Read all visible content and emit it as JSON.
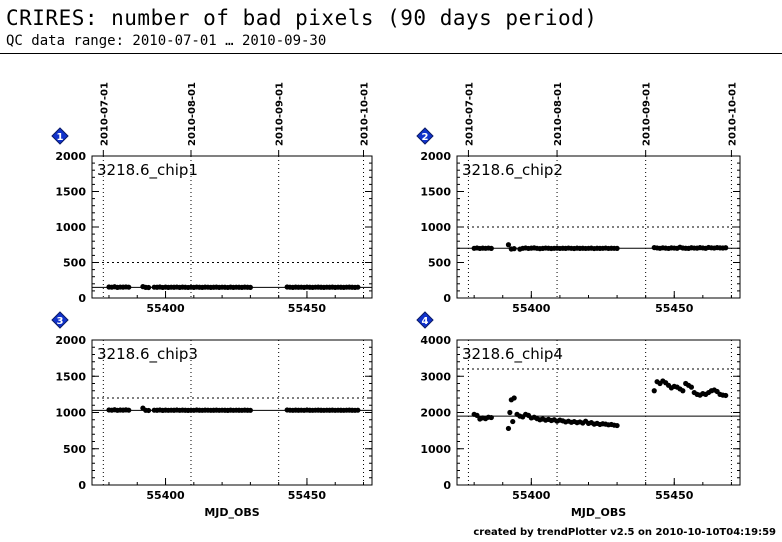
{
  "header": {
    "title": "CRIRES: number of bad pixels (90 days period)",
    "subtitle": "QC data range: 2010-07-01 … 2010-09-30"
  },
  "footer": "created by trendPlotter v2.5 on 2010-10-10T04:19:59",
  "date_ticks": [
    {
      "label": "2010-07-01",
      "mjd": 55378
    },
    {
      "label": "2010-08-01",
      "mjd": 55409
    },
    {
      "label": "2010-09-01",
      "mjd": 55440
    },
    {
      "label": "2010-10-01",
      "mjd": 55470
    }
  ],
  "colors": {
    "badge": "#1133cc",
    "points": "#000000"
  },
  "chart_data": [
    {
      "type": "scatter",
      "badge": "1",
      "name": "3218.6_chip1",
      "xlabel": "",
      "xlim": [
        55374,
        55473
      ],
      "ylim": [
        0,
        2000
      ],
      "yticks": [
        0,
        500,
        1000,
        1500,
        2000
      ],
      "xticks": [
        55400,
        55450
      ],
      "reference": 150,
      "threshold": 500,
      "x": [
        55380,
        55381,
        55382,
        55383,
        55384,
        55385,
        55386,
        55387,
        55392,
        55393,
        55394,
        55396,
        55397,
        55398,
        55399,
        55400,
        55401,
        55402,
        55403,
        55404,
        55405,
        55406,
        55407,
        55408,
        55409,
        55410,
        55411,
        55412,
        55413,
        55414,
        55415,
        55416,
        55417,
        55418,
        55419,
        55420,
        55421,
        55422,
        55423,
        55424,
        55425,
        55426,
        55427,
        55428,
        55429,
        55430,
        55443,
        55444,
        55445,
        55446,
        55447,
        55448,
        55449,
        55450,
        55451,
        55452,
        55453,
        55454,
        55455,
        55456,
        55457,
        55458,
        55459,
        55460,
        55461,
        55462,
        55463,
        55464,
        55465,
        55466,
        55467,
        55468
      ],
      "y": [
        155,
        152,
        158,
        150,
        154,
        153,
        156,
        152,
        160,
        150,
        148,
        152,
        151,
        155,
        149,
        153,
        150,
        152,
        151,
        154,
        150,
        153,
        151,
        149,
        152,
        150,
        154,
        151,
        150,
        153,
        152,
        150,
        151,
        153,
        150,
        152,
        151,
        149,
        153,
        150,
        152,
        151,
        150,
        153,
        151,
        150,
        155,
        152,
        150,
        153,
        151,
        152,
        150,
        154,
        151,
        150,
        152,
        153,
        151,
        150,
        152,
        151,
        153,
        150,
        152,
        151,
        150,
        152,
        153,
        151,
        150,
        152
      ]
    },
    {
      "type": "scatter",
      "badge": "2",
      "name": "3218.6_chip2",
      "xlabel": "",
      "xlim": [
        55374,
        55473
      ],
      "ylim": [
        0,
        2000
      ],
      "yticks": [
        0,
        500,
        1000,
        1500,
        2000
      ],
      "xticks": [
        55400,
        55450
      ],
      "reference": 700,
      "threshold": 1000,
      "x": [
        55380,
        55381,
        55382,
        55383,
        55384,
        55385,
        55386,
        55392,
        55393,
        55394,
        55396,
        55397,
        55398,
        55399,
        55400,
        55401,
        55402,
        55403,
        55404,
        55405,
        55406,
        55407,
        55408,
        55409,
        55410,
        55411,
        55412,
        55413,
        55414,
        55415,
        55416,
        55417,
        55418,
        55419,
        55420,
        55421,
        55422,
        55423,
        55424,
        55425,
        55426,
        55427,
        55428,
        55429,
        55430,
        55443,
        55444,
        55445,
        55446,
        55447,
        55448,
        55449,
        55450,
        55451,
        55452,
        55453,
        55454,
        55455,
        55456,
        55457,
        55458,
        55459,
        55460,
        55461,
        55462,
        55463,
        55464,
        55465,
        55466,
        55467,
        55468
      ],
      "y": [
        700,
        705,
        698,
        702,
        700,
        703,
        699,
        750,
        690,
        695,
        688,
        700,
        705,
        698,
        702,
        706,
        700,
        695,
        699,
        703,
        701,
        697,
        700,
        702,
        698,
        701,
        699,
        703,
        700,
        697,
        702,
        699,
        701,
        698,
        700,
        702,
        696,
        701,
        699,
        700,
        703,
        698,
        701,
        700,
        699,
        710,
        705,
        700,
        707,
        702,
        698,
        706,
        703,
        700,
        715,
        704,
        701,
        699,
        708,
        703,
        702,
        709,
        705,
        700,
        712,
        707,
        703,
        710,
        706,
        704,
        708
      ]
    },
    {
      "type": "scatter",
      "badge": "3",
      "name": "3218.6_chip3",
      "xlabel": "MJD_OBS",
      "xlim": [
        55374,
        55473
      ],
      "ylim": [
        0,
        2000
      ],
      "yticks": [
        0,
        500,
        1000,
        1500,
        2000
      ],
      "xticks": [
        55400,
        55450
      ],
      "reference": 1030,
      "threshold": 1200,
      "x": [
        55380,
        55381,
        55382,
        55383,
        55384,
        55385,
        55386,
        55387,
        55392,
        55393,
        55394,
        55396,
        55397,
        55398,
        55399,
        55400,
        55401,
        55402,
        55403,
        55404,
        55405,
        55406,
        55407,
        55408,
        55409,
        55410,
        55411,
        55412,
        55413,
        55414,
        55415,
        55416,
        55417,
        55418,
        55419,
        55420,
        55421,
        55422,
        55423,
        55424,
        55425,
        55426,
        55427,
        55428,
        55429,
        55430,
        55443,
        55444,
        55445,
        55446,
        55447,
        55448,
        55449,
        55450,
        55451,
        55452,
        55453,
        55454,
        55455,
        55456,
        55457,
        55458,
        55459,
        55460,
        55461,
        55462,
        55463,
        55464,
        55465,
        55466,
        55467,
        55468
      ],
      "y": [
        1035,
        1032,
        1038,
        1030,
        1034,
        1033,
        1036,
        1032,
        1060,
        1030,
        1028,
        1032,
        1031,
        1035,
        1029,
        1033,
        1030,
        1032,
        1031,
        1034,
        1030,
        1033,
        1031,
        1029,
        1032,
        1030,
        1034,
        1031,
        1030,
        1033,
        1032,
        1030,
        1031,
        1033,
        1030,
        1032,
        1031,
        1029,
        1033,
        1030,
        1032,
        1031,
        1030,
        1033,
        1031,
        1030,
        1035,
        1032,
        1030,
        1033,
        1031,
        1032,
        1030,
        1034,
        1031,
        1030,
        1032,
        1033,
        1031,
        1030,
        1032,
        1031,
        1033,
        1030,
        1032,
        1031,
        1030,
        1032,
        1033,
        1031,
        1030,
        1032
      ]
    },
    {
      "type": "scatter",
      "badge": "4",
      "name": "3218.6_chip4",
      "xlabel": "MJD_OBS",
      "xlim": [
        55374,
        55473
      ],
      "ylim": [
        0,
        4000
      ],
      "yticks": [
        0,
        1000,
        2000,
        3000,
        4000
      ],
      "xticks": [
        55400,
        55450
      ],
      "reference": 1900,
      "threshold": 3200,
      "x": [
        55380,
        55381,
        55382,
        55383,
        55384,
        55385,
        55386,
        55392,
        55392.5,
        55393,
        55393.5,
        55394,
        55395,
        55396,
        55397,
        55398,
        55399,
        55400,
        55401,
        55402,
        55403,
        55404,
        55405,
        55406,
        55407,
        55408,
        55409,
        55410,
        55411,
        55412,
        55413,
        55414,
        55415,
        55416,
        55417,
        55418,
        55419,
        55420,
        55421,
        55422,
        55423,
        55424,
        55425,
        55426,
        55427,
        55428,
        55429,
        55430,
        55443,
        55444,
        55445,
        55446,
        55447,
        55448,
        55449,
        55450,
        55451,
        55452,
        55453,
        55454,
        55455,
        55456,
        55457,
        55458,
        55459,
        55460,
        55461,
        55462,
        55463,
        55464,
        55465,
        55466,
        55467,
        55468
      ],
      "y": [
        1950,
        1920,
        1820,
        1850,
        1830,
        1870,
        1860,
        1560,
        2000,
        2350,
        1750,
        2400,
        1950,
        1900,
        1880,
        1950,
        1920,
        1850,
        1870,
        1830,
        1800,
        1820,
        1790,
        1810,
        1780,
        1800,
        1760,
        1790,
        1770,
        1740,
        1760,
        1730,
        1750,
        1720,
        1740,
        1710,
        1760,
        1700,
        1720,
        1680,
        1700,
        1670,
        1690,
        1680,
        1660,
        1670,
        1650,
        1640,
        2600,
        2850,
        2800,
        2870,
        2820,
        2750,
        2680,
        2720,
        2700,
        2650,
        2600,
        2800,
        2750,
        2700,
        2550,
        2500,
        2480,
        2520,
        2500,
        2550,
        2600,
        2620,
        2580,
        2500,
        2480,
        2470
      ]
    }
  ]
}
